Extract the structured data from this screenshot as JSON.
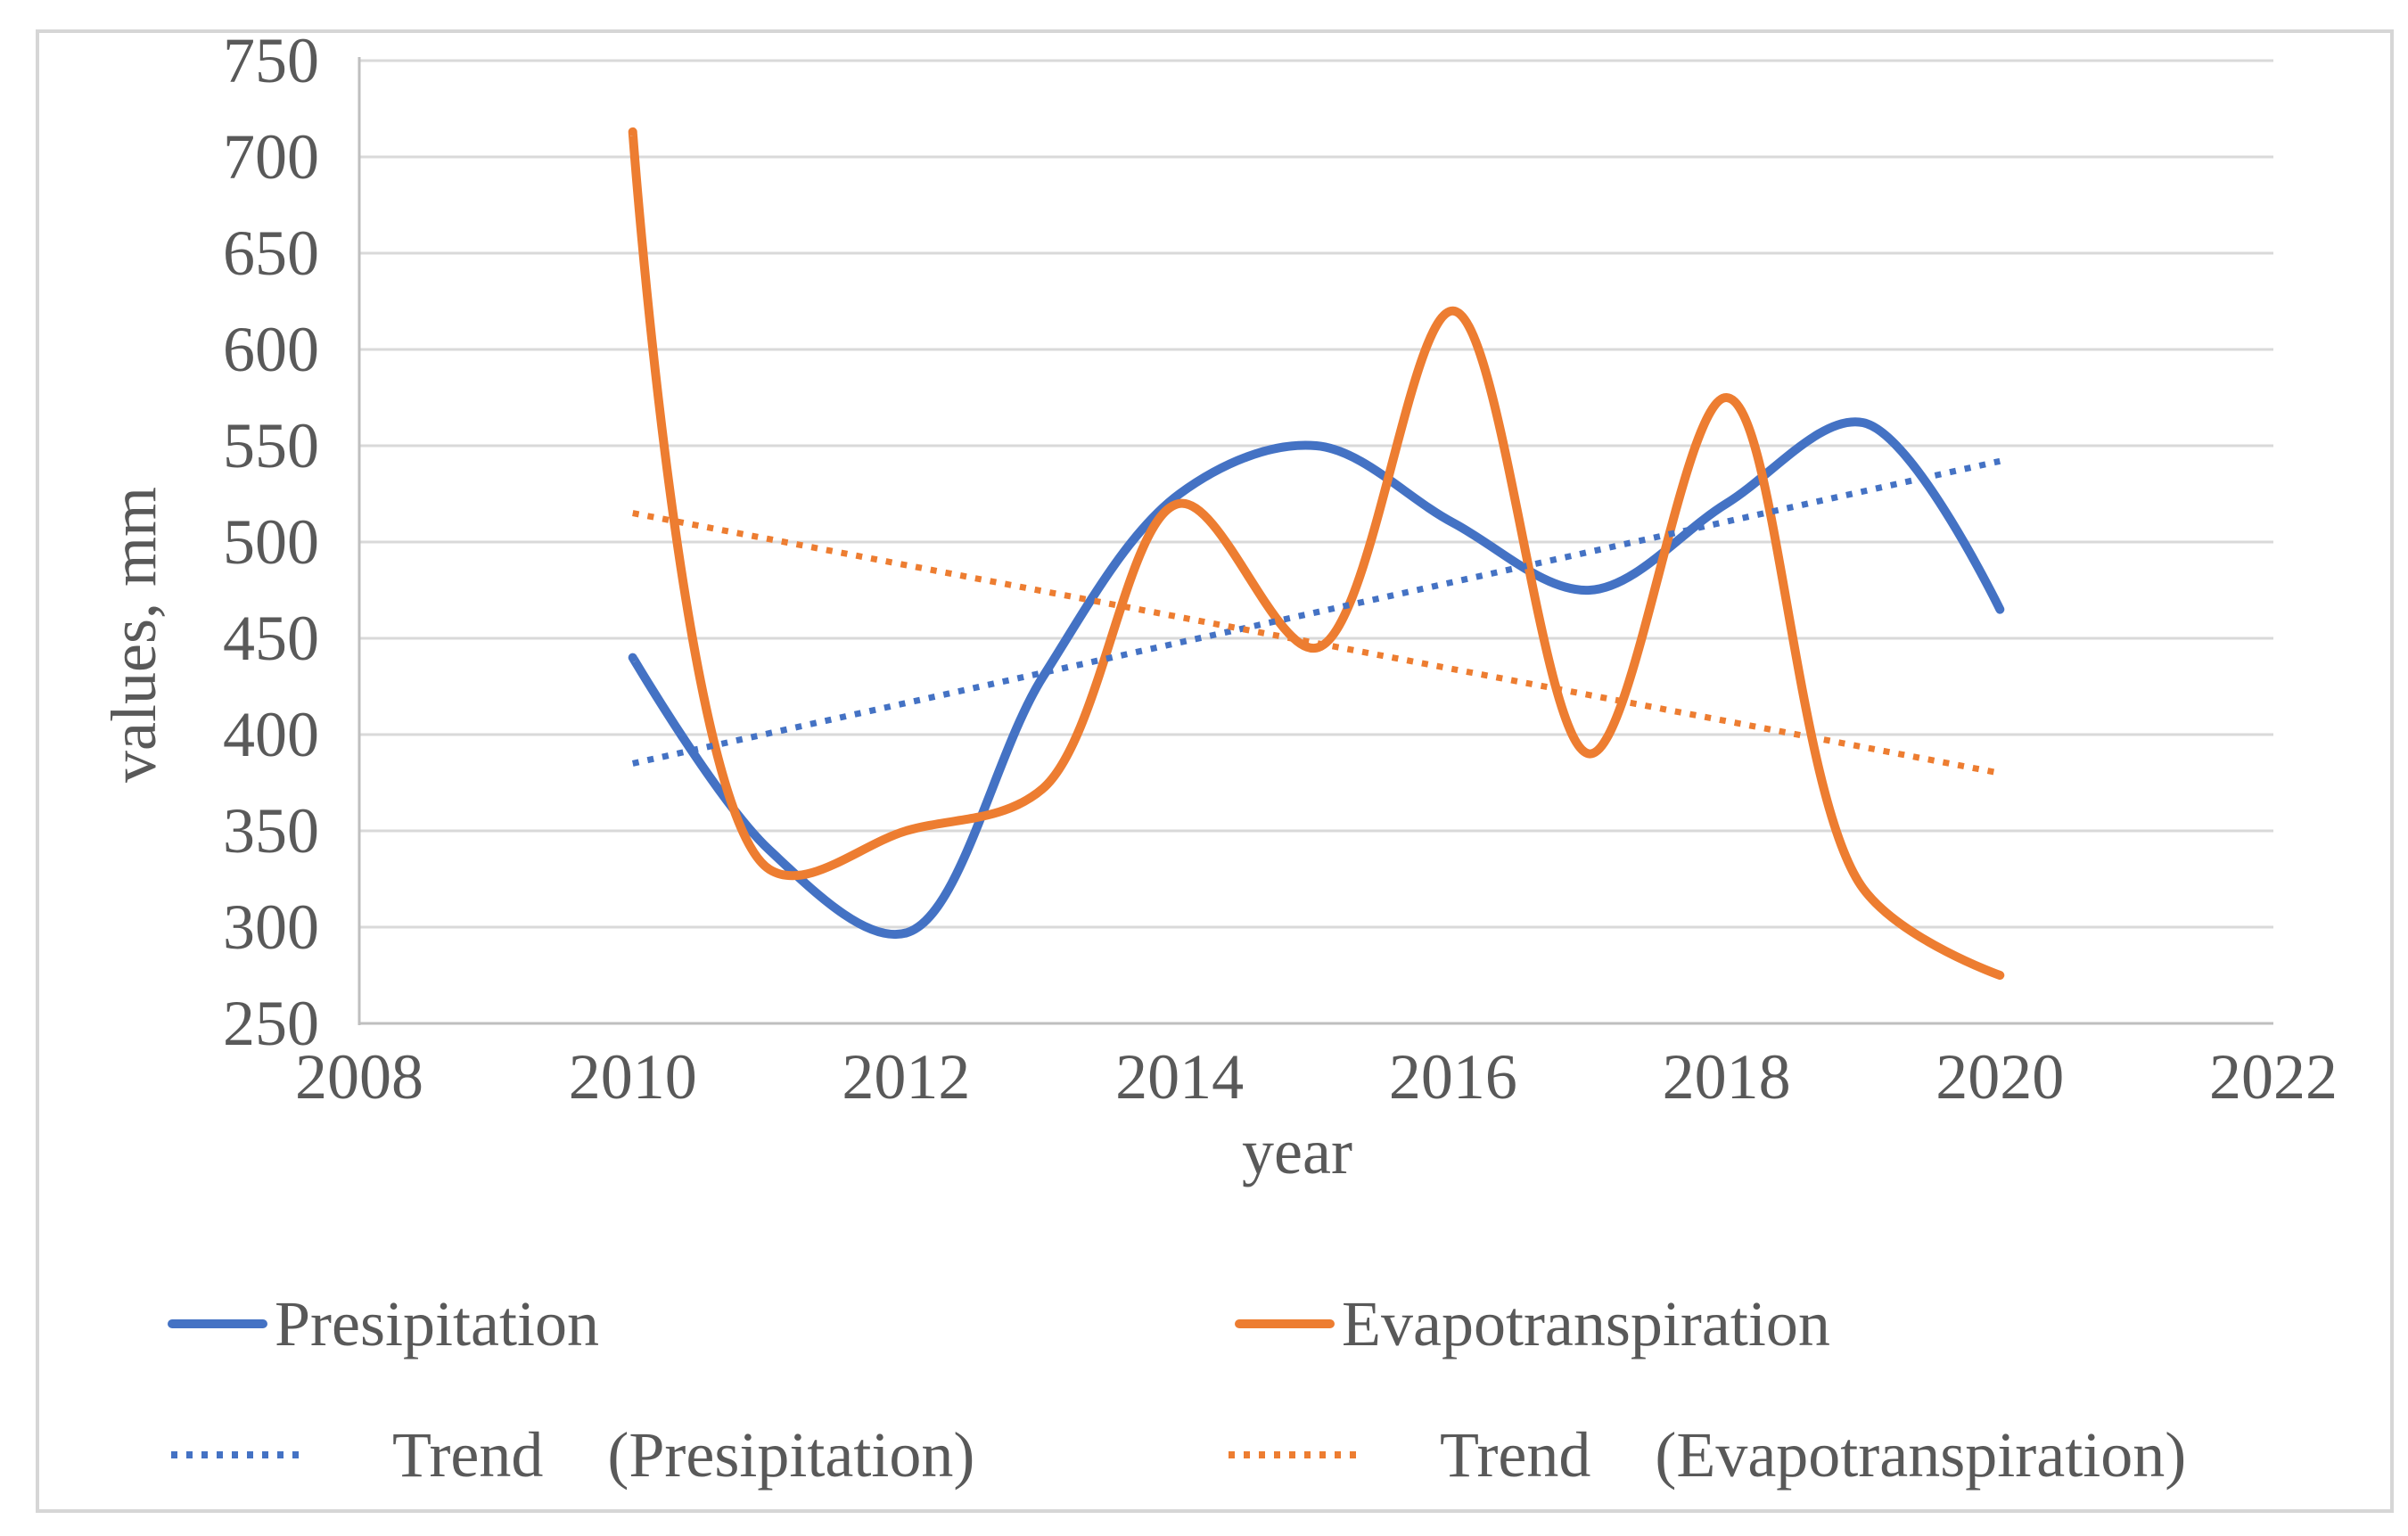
{
  "window": {
    "background": "#FFFFFF",
    "frame_border_color": "#D6D6D6"
  },
  "colors": {
    "text": "#595959",
    "gridline": "#D9D9D9",
    "axis_line": "#BFBFBF",
    "presipitation": "#4472C4",
    "evapotranspiration": "#ED7D31"
  },
  "chart_data": {
    "type": "line",
    "title": "",
    "xlabel": "year",
    "ylabel": "values, mm",
    "xlim": [
      2008,
      2022
    ],
    "ylim": [
      250,
      750
    ],
    "x_ticks": [
      "2008",
      "2010",
      "2012",
      "2014",
      "2016",
      "2018",
      "2020",
      "2022"
    ],
    "y_ticks": [
      "250",
      "300",
      "350",
      "400",
      "450",
      "500",
      "550",
      "600",
      "650",
      "700",
      "750"
    ],
    "grid": true,
    "legend_position": "bottom",
    "years": [
      2010,
      2011,
      2012,
      2013,
      2014,
      2015,
      2016,
      2017,
      2018,
      2019,
      2020
    ],
    "series": [
      {
        "name": "Presipitation",
        "legend_label": "Presipitation",
        "style": "solid-smooth",
        "color": "#4472C4",
        "values": [
          440,
          340,
          297,
          430,
          525,
          550,
          510,
          475,
          520,
          562,
          465
        ]
      },
      {
        "name": "Evapotranspiration",
        "legend_label": "Evapotranspiration",
        "style": "solid-smooth",
        "color": "#ED7D31",
        "values": [
          713,
          330,
          350,
          372,
          520,
          445,
          620,
          390,
          575,
          320,
          275
        ]
      },
      {
        "name": "Trend (Presipitation)",
        "legend_label": "Trend    (Presipitation)",
        "style": "dotted-straight",
        "color": "#4472C4",
        "trend_x": [
          2010,
          2020
        ],
        "trend_values": [
          385,
          542
        ]
      },
      {
        "name": "Trend (Evapotranspiration)",
        "legend_label": "Trend    (Evapotranspiration)",
        "style": "dotted-straight",
        "color": "#ED7D31",
        "trend_x": [
          2010,
          2020
        ],
        "trend_values": [
          515,
          380
        ]
      }
    ]
  },
  "legend": {
    "row1": [
      "Presipitation",
      "Evapotranspiration"
    ],
    "row2": [
      "Trend    (Presipitation)",
      "Trend    (Evapotranspiration)"
    ]
  }
}
